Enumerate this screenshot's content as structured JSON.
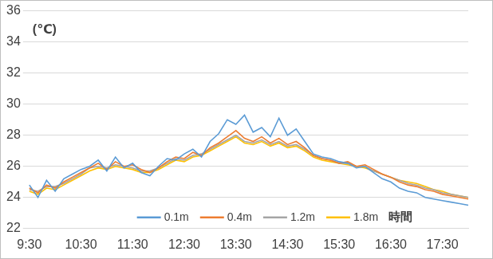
{
  "chart_data": {
    "type": "line",
    "ylabel": "(℃)",
    "xlabel": "時間",
    "categories": [
      "9:30",
      null,
      null,
      null,
      null,
      null,
      "10:30",
      null,
      null,
      null,
      null,
      null,
      "11:30",
      null,
      null,
      null,
      null,
      null,
      "12:30",
      null,
      null,
      null,
      null,
      null,
      "13:30",
      null,
      null,
      null,
      null,
      null,
      "14:30",
      null,
      null,
      null,
      null,
      null,
      "15:30",
      null,
      null,
      null,
      null,
      null,
      "16:30",
      null,
      null,
      null,
      null,
      null,
      "17:30",
      null,
      null,
      null
    ],
    "series": [
      {
        "name": "0.1m",
        "color": "#5b9bd5",
        "values": [
          24.8,
          24.0,
          25.1,
          24.4,
          25.2,
          25.5,
          25.8,
          26.0,
          26.4,
          25.7,
          26.6,
          25.9,
          26.2,
          25.6,
          25.4,
          26.0,
          26.5,
          26.4,
          26.8,
          27.1,
          26.6,
          27.6,
          28.1,
          29.0,
          28.7,
          29.3,
          28.2,
          28.5,
          27.9,
          29.1,
          28.0,
          28.4,
          27.6,
          26.8,
          26.6,
          26.5,
          26.3,
          26.2,
          25.9,
          26.0,
          25.6,
          25.2,
          25.0,
          24.6,
          24.4,
          24.3,
          24.0,
          23.9,
          23.8,
          23.7,
          23.6,
          23.5
        ]
      },
      {
        "name": "0.4m",
        "color": "#ed7d31",
        "values": [
          24.6,
          24.3,
          24.8,
          24.6,
          25.0,
          25.3,
          25.6,
          25.9,
          26.2,
          25.8,
          26.3,
          26.0,
          26.1,
          25.8,
          25.6,
          25.9,
          26.3,
          26.6,
          26.5,
          26.9,
          26.7,
          27.2,
          27.5,
          27.9,
          28.3,
          27.8,
          27.6,
          27.9,
          27.5,
          27.8,
          27.4,
          27.6,
          27.2,
          26.7,
          26.5,
          26.4,
          26.2,
          26.3,
          26.0,
          26.1,
          25.8,
          25.5,
          25.3,
          25.0,
          24.8,
          24.7,
          24.5,
          24.4,
          24.2,
          24.1,
          24.0,
          23.9
        ]
      },
      {
        "name": "1.2m",
        "color": "#a5a5a5",
        "values": [
          24.5,
          24.4,
          24.7,
          24.7,
          24.9,
          25.2,
          25.5,
          25.9,
          26.0,
          25.9,
          26.1,
          26.0,
          25.9,
          25.7,
          25.7,
          25.9,
          26.2,
          26.5,
          26.4,
          26.7,
          26.8,
          27.1,
          27.4,
          27.7,
          28.0,
          27.6,
          27.5,
          27.7,
          27.4,
          27.6,
          27.3,
          27.4,
          27.1,
          26.7,
          26.5,
          26.4,
          26.2,
          26.2,
          26.0,
          26.0,
          25.7,
          25.5,
          25.3,
          25.1,
          24.9,
          24.8,
          24.6,
          24.5,
          24.3,
          24.2,
          24.1,
          24.0
        ]
      },
      {
        "name": "1.8m",
        "color": "#ffc000",
        "values": [
          24.4,
          24.2,
          24.6,
          24.5,
          24.8,
          25.1,
          25.4,
          25.7,
          25.9,
          25.8,
          26.0,
          25.9,
          25.8,
          25.6,
          25.6,
          25.8,
          26.1,
          26.4,
          26.3,
          26.6,
          26.7,
          27.0,
          27.3,
          27.6,
          27.9,
          27.5,
          27.4,
          27.6,
          27.3,
          27.5,
          27.2,
          27.3,
          27.0,
          26.6,
          26.4,
          26.3,
          26.2,
          26.1,
          26.0,
          25.9,
          25.7,
          25.5,
          25.3,
          25.1,
          25.0,
          24.9,
          24.7,
          24.5,
          24.4,
          24.2,
          24.1,
          24.0
        ]
      }
    ],
    "ylim": [
      22,
      36
    ],
    "yticks": [
      22,
      24,
      26,
      28,
      30,
      32,
      34,
      36
    ],
    "grid": true,
    "legend": "bottom"
  }
}
